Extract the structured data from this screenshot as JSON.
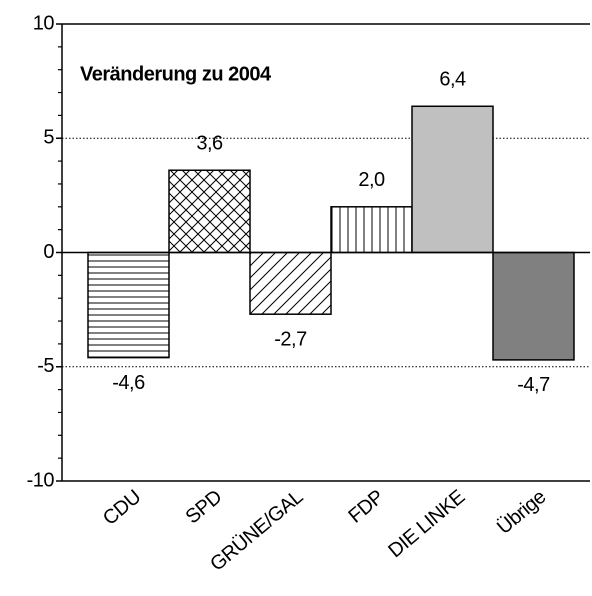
{
  "chart_data": {
    "type": "bar",
    "annotation": "Veränderung zu 2004",
    "categories": [
      "CDU",
      "SPD",
      "GRÜNE/GAL",
      "FDP",
      "DIE LINKE",
      "Übrige"
    ],
    "values": [
      -4.6,
      3.6,
      -2.7,
      2.0,
      6.4,
      -4.7
    ],
    "value_labels": [
      "-4,6",
      "3,6",
      "-2,7",
      "2,0",
      "6,4",
      "-4,7"
    ],
    "colors": [
      "#ffffff",
      "#ffffff",
      "#ffffff",
      "#ffffff",
      "#c0c0c0",
      "#808080"
    ],
    "patterns": [
      "horizontal",
      "crosshatch",
      "diagonal",
      "vertical",
      "solid",
      "solid"
    ],
    "ylim": [
      -10,
      10
    ],
    "yticks": [
      -10,
      -5,
      0,
      5,
      10
    ],
    "grid": true
  }
}
